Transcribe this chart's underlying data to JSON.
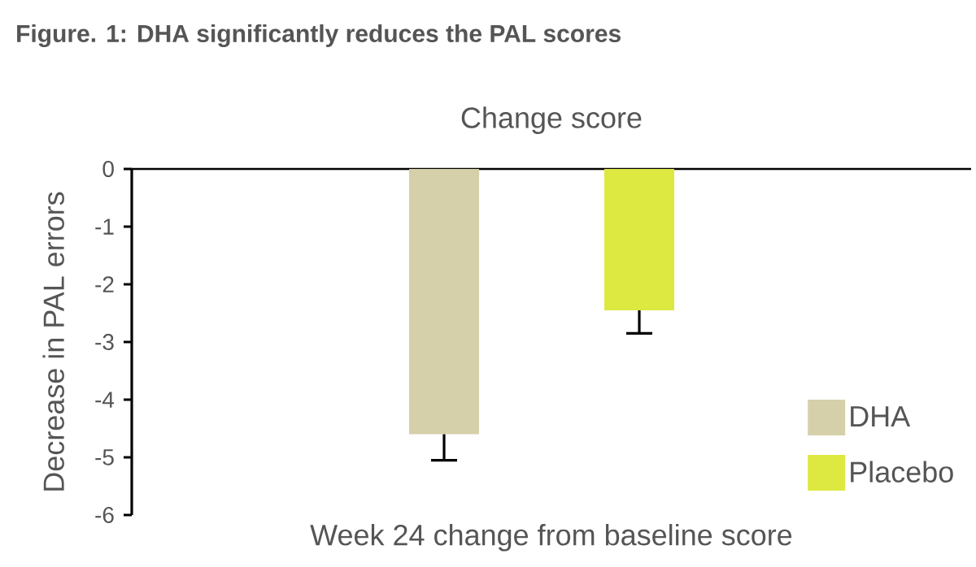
{
  "chart_data": {
    "type": "bar",
    "title": "Figure. 1: DHA significantly reduces the PAL scores",
    "subtitle": "Change score",
    "xlabel": "Week 24 change from baseline score",
    "ylabel": "Decrease in PAL errors",
    "categories": [
      null
    ],
    "series": [
      {
        "name": "DHA",
        "color": "#d5d0aa",
        "values": [
          -4.6
        ],
        "errors": [
          0.45
        ]
      },
      {
        "name": "Placebo",
        "color": "#dde840",
        "values": [
          -2.45
        ],
        "errors": [
          0.4
        ]
      }
    ],
    "ylim": [
      -6,
      0
    ],
    "yticks": [
      -6,
      -5,
      -4,
      -3,
      -2,
      -1,
      0
    ],
    "grid": false,
    "legend": "bottom right"
  }
}
